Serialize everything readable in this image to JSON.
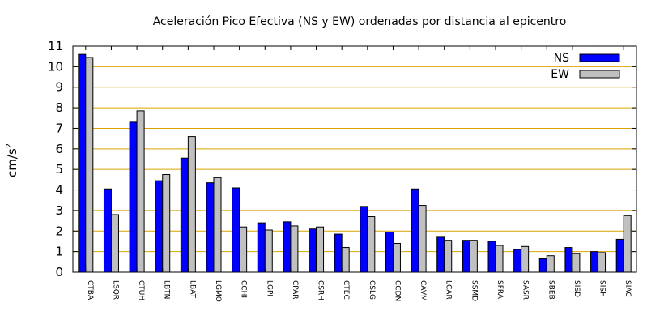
{
  "chart_data": {
    "type": "bar",
    "title": "Aceleración Pico Efectiva (NS y EW) ordenadas por distancia al epicentro",
    "xlabel": "",
    "ylabel": "cm/s",
    "ylabel_superscript": "2",
    "ylim": [
      0,
      11
    ],
    "yticks": [
      0,
      1,
      2,
      3,
      4,
      5,
      6,
      7,
      8,
      9,
      10,
      11
    ],
    "grid": "horizontal",
    "legend_position": "top-right",
    "categories": [
      "CTBA",
      "LSQR",
      "CTUH",
      "LBTN",
      "LBAT",
      "LGMO",
      "CCHI",
      "LGPI",
      "CPAR",
      "CSRH",
      "CTEC",
      "CSLG",
      "CCDN",
      "CAVM",
      "LCAR",
      "SSMD",
      "SFRA",
      "SASR",
      "SBEB",
      "SISD",
      "SISH",
      "SIAC"
    ],
    "series": [
      {
        "name": "NS",
        "color": "#0000ff",
        "values": [
          10.6,
          4.05,
          7.3,
          4.45,
          5.55,
          4.35,
          4.1,
          2.4,
          2.45,
          2.1,
          1.85,
          3.2,
          1.95,
          4.05,
          1.7,
          1.55,
          1.5,
          1.1,
          0.65,
          1.2,
          1.0,
          1.6
        ]
      },
      {
        "name": "EW",
        "color": "#c0c0c0",
        "values": [
          10.45,
          2.8,
          7.85,
          4.75,
          6.6,
          4.6,
          2.2,
          2.05,
          2.25,
          2.2,
          1.2,
          2.7,
          1.4,
          3.25,
          1.55,
          1.55,
          1.3,
          1.25,
          0.8,
          0.9,
          0.95,
          2.75
        ]
      }
    ]
  }
}
